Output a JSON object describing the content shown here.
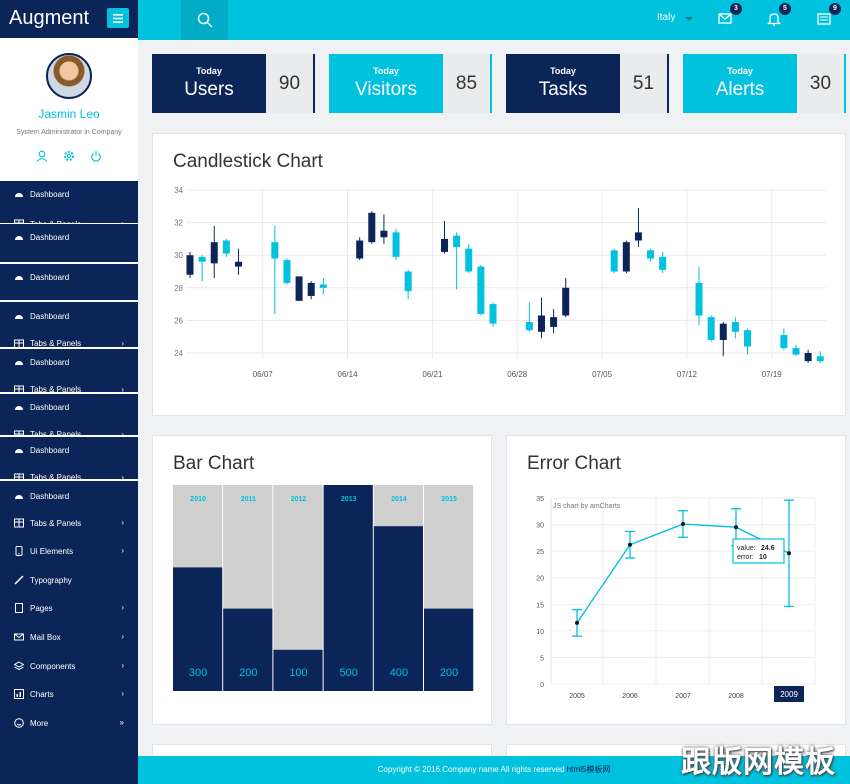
{
  "brand": {
    "title": "Augment"
  },
  "topbar": {
    "language": "Italy",
    "mail_badge": "3",
    "bell_badge": "5",
    "list_badge": "9"
  },
  "profile": {
    "name": "Jasmin Leo",
    "role": "System Administrator in Company"
  },
  "sidebar": {
    "items": [
      {
        "label": "Dashboard",
        "icon": "dashboard-icon"
      },
      {
        "label": "Tabs & Panels",
        "icon": "table-icon"
      },
      {
        "label": "Ui Elements",
        "icon": "mobile-icon"
      },
      {
        "label": "Typography",
        "icon": "pencil-icon"
      },
      {
        "label": "Pages",
        "icon": "file-icon"
      },
      {
        "label": "Mail Box",
        "icon": "mail-icon"
      },
      {
        "label": "Components",
        "icon": "layers-icon"
      },
      {
        "label": "Charts",
        "icon": "chart-icon"
      },
      {
        "label": "More",
        "icon": "smile-icon"
      }
    ]
  },
  "stats": [
    {
      "small": "Today",
      "big": "Users",
      "value": "90",
      "color": "#0b2559"
    },
    {
      "small": "Today",
      "big": "Visitors",
      "value": "85",
      "color": "#00c1de"
    },
    {
      "small": "Today",
      "big": "Tasks",
      "value": "51",
      "color": "#0b2559"
    },
    {
      "small": "Today",
      "big": "Alerts",
      "value": "30",
      "color": "#00c1de"
    }
  ],
  "panels": {
    "candlestick_title": "Candlestick Chart",
    "bar_title": "Bar Chart",
    "error_title": "Error Chart"
  },
  "footer": {
    "text": "Copyright © 2016.Company name All rights reserved ",
    "link": "html5模板网"
  },
  "watermark": "跟版网模板",
  "colors": {
    "navy": "#0b2559",
    "cyan": "#00c1de",
    "grey": "#cfcfcf"
  },
  "chart_data": [
    {
      "type": "candlestick",
      "title": "Candlestick Chart",
      "ylim": [
        24,
        34
      ],
      "yticks": [
        24,
        26,
        28,
        30,
        32,
        34
      ],
      "xtick_labels": [
        "06/07",
        "06/14",
        "06/21",
        "06/28",
        "07/05",
        "07/12",
        "07/19"
      ],
      "candles": [
        {
          "day": 1,
          "open": 28.8,
          "close": 30.0,
          "high": 30.2,
          "low": 28.6
        },
        {
          "day": 2,
          "open": 29.9,
          "close": 29.6,
          "high": 30.0,
          "low": 28.4
        },
        {
          "day": 3,
          "open": 29.5,
          "close": 30.8,
          "high": 31.8,
          "low": 28.6
        },
        {
          "day": 4,
          "open": 30.9,
          "close": 30.1,
          "high": 31.0,
          "low": 29.9
        },
        {
          "day": 5,
          "open": 29.3,
          "close": 29.6,
          "high": 30.4,
          "low": 28.8
        },
        {
          "day": 8,
          "open": 30.8,
          "close": 29.8,
          "high": 31.8,
          "low": 26.4
        },
        {
          "day": 9,
          "open": 29.7,
          "close": 28.3,
          "high": 29.8,
          "low": 28.2
        },
        {
          "day": 10,
          "open": 27.2,
          "close": 28.7,
          "high": 28.7,
          "low": 27.2
        },
        {
          "day": 11,
          "open": 27.5,
          "close": 28.3,
          "high": 28.4,
          "low": 27.3
        },
        {
          "day": 12,
          "open": 28.2,
          "close": 28.0,
          "high": 28.6,
          "low": 27.6
        },
        {
          "day": 15,
          "open": 29.8,
          "close": 30.9,
          "high": 31.1,
          "low": 29.7
        },
        {
          "day": 16,
          "open": 30.8,
          "close": 32.6,
          "high": 32.7,
          "low": 30.7
        },
        {
          "day": 17,
          "open": 31.1,
          "close": 31.5,
          "high": 32.5,
          "low": 30.7
        },
        {
          "day": 18,
          "open": 31.4,
          "close": 29.9,
          "high": 31.6,
          "low": 29.7
        },
        {
          "day": 19,
          "open": 29.0,
          "close": 27.8,
          "high": 29.1,
          "low": 27.3
        },
        {
          "day": 22,
          "open": 30.2,
          "close": 31.0,
          "high": 32.1,
          "low": 30.1
        },
        {
          "day": 23,
          "open": 31.2,
          "close": 30.5,
          "high": 31.4,
          "low": 27.9
        },
        {
          "day": 24,
          "open": 30.4,
          "close": 29.0,
          "high": 30.7,
          "low": 28.9
        },
        {
          "day": 25,
          "open": 29.3,
          "close": 26.4,
          "high": 29.4,
          "low": 26.3
        },
        {
          "day": 26,
          "open": 27.0,
          "close": 25.8,
          "high": 27.1,
          "low": 25.6
        },
        {
          "day": 29,
          "open": 25.9,
          "close": 25.4,
          "high": 27.1,
          "low": 25.3
        },
        {
          "day": 30,
          "open": 25.3,
          "close": 26.3,
          "high": 27.4,
          "low": 24.9
        },
        {
          "day": 31,
          "open": 25.6,
          "close": 26.2,
          "high": 26.7,
          "low": 25.2
        },
        {
          "day": 32,
          "open": 26.3,
          "close": 28.0,
          "high": 28.6,
          "low": 26.2
        },
        {
          "day": 36,
          "open": 30.3,
          "close": 29.0,
          "high": 30.4,
          "low": 28.9
        },
        {
          "day": 37,
          "open": 29.0,
          "close": 30.8,
          "high": 30.9,
          "low": 28.9
        },
        {
          "day": 38,
          "open": 30.9,
          "close": 31.4,
          "high": 32.9,
          "low": 30.5
        },
        {
          "day": 39,
          "open": 30.3,
          "close": 29.8,
          "high": 30.4,
          "low": 29.6
        },
        {
          "day": 40,
          "open": 29.9,
          "close": 29.1,
          "high": 30.2,
          "low": 28.9
        },
        {
          "day": 43,
          "open": 28.3,
          "close": 26.3,
          "high": 29.3,
          "low": 25.7
        },
        {
          "day": 44,
          "open": 26.2,
          "close": 24.8,
          "high": 26.3,
          "low": 24.7
        },
        {
          "day": 45,
          "open": 24.8,
          "close": 25.8,
          "high": 25.9,
          "low": 23.8
        },
        {
          "day": 46,
          "open": 25.9,
          "close": 25.3,
          "high": 26.2,
          "low": 24.9
        },
        {
          "day": 47,
          "open": 25.4,
          "close": 24.4,
          "high": 25.5,
          "low": 23.9
        },
        {
          "day": 50,
          "open": 25.1,
          "close": 24.3,
          "high": 25.5,
          "low": 24.2
        },
        {
          "day": 51,
          "open": 24.3,
          "close": 23.9,
          "high": 24.5,
          "low": 23.8
        },
        {
          "day": 52,
          "open": 23.5,
          "close": 24.0,
          "high": 24.2,
          "low": 23.4
        },
        {
          "day": 53,
          "open": 23.8,
          "close": 23.5,
          "high": 24.1,
          "low": 23.4
        }
      ]
    },
    {
      "type": "bar",
      "title": "Bar Chart",
      "categories": [
        "2010",
        "2011",
        "2012",
        "2013",
        "2014",
        "2015"
      ],
      "values": [
        300,
        200,
        100,
        500,
        400,
        200
      ],
      "ylim": [
        0,
        500
      ]
    },
    {
      "type": "line",
      "title": "Error Chart",
      "credit": "JS chart by amCharts",
      "x": [
        "2005",
        "2006",
        "2007",
        "2008",
        "2009"
      ],
      "values": [
        11.5,
        26.2,
        30.1,
        29.5,
        24.6
      ],
      "errors": [
        2.5,
        2.5,
        2.5,
        3.5,
        10
      ],
      "ylim": [
        0,
        35
      ],
      "yticks": [
        0,
        5,
        10,
        15,
        20,
        25,
        30,
        35
      ],
      "tooltip": {
        "value_label": "value:",
        "value": "24.6",
        "error_label": "error:",
        "error": "10"
      },
      "highlight_x": "2009"
    }
  ]
}
